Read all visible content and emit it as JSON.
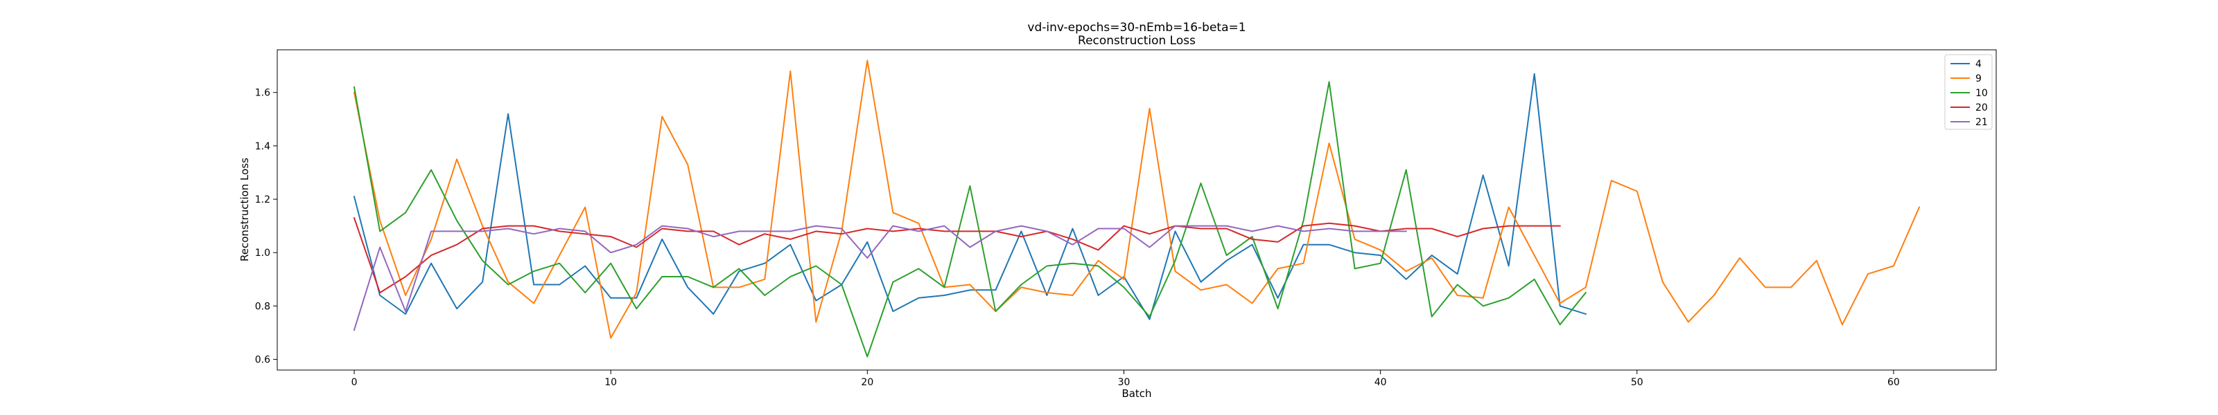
{
  "chart_data": {
    "type": "line",
    "title": "vd-inv-epochs=30-nEmb=16-beta=1",
    "subtitle": "Reconstruction Loss",
    "xlabel": "Batch",
    "ylabel": "Reconstruction Loss",
    "xlim": [
      -3,
      64
    ],
    "ylim": [
      0.56,
      1.76
    ],
    "xticks": [
      0,
      10,
      20,
      30,
      40,
      50,
      60
    ],
    "yticks": [
      0.6,
      0.8,
      1.0,
      1.2,
      1.4,
      1.6
    ],
    "grid": false,
    "legend_position": "top-right",
    "series": [
      {
        "name": "4",
        "color": "#1f77b4",
        "x": [
          0,
          1,
          2,
          3,
          4,
          5,
          6,
          7,
          8,
          9,
          10,
          11,
          12,
          13,
          14,
          15,
          16,
          17,
          18,
          19,
          20,
          21,
          22,
          23,
          24,
          25,
          26,
          27,
          28,
          29,
          30,
          31,
          32,
          33,
          34,
          35,
          36,
          37,
          38,
          39,
          40,
          41,
          42,
          43,
          44,
          45,
          46,
          47,
          48
        ],
        "values": [
          1.21,
          0.84,
          0.77,
          0.96,
          0.79,
          0.89,
          1.52,
          0.88,
          0.88,
          0.95,
          0.83,
          0.83,
          1.05,
          0.87,
          0.77,
          0.93,
          0.96,
          1.03,
          0.82,
          0.88,
          1.04,
          0.78,
          0.83,
          0.84,
          0.86,
          0.86,
          1.08,
          0.84,
          1.09,
          0.84,
          0.91,
          0.75,
          1.08,
          0.89,
          0.97,
          1.03,
          0.83,
          1.03,
          1.03,
          1.0,
          0.99,
          0.9,
          0.99,
          0.92,
          1.29,
          0.95,
          1.67,
          0.8,
          0.77
        ]
      },
      {
        "name": "9",
        "color": "#ff7f0e",
        "x": [
          0,
          1,
          2,
          3,
          4,
          5,
          6,
          7,
          8,
          9,
          10,
          11,
          12,
          13,
          14,
          15,
          16,
          17,
          18,
          19,
          20,
          21,
          22,
          23,
          24,
          25,
          26,
          27,
          28,
          29,
          30,
          31,
          32,
          33,
          34,
          35,
          36,
          37,
          38,
          39,
          40,
          41,
          42,
          43,
          44,
          45,
          46,
          47,
          48,
          49,
          50,
          51,
          52,
          53,
          54,
          55,
          56,
          57,
          58,
          59,
          60,
          61
        ],
        "values": [
          1.6,
          1.12,
          0.84,
          1.05,
          1.35,
          1.1,
          0.89,
          0.81,
          0.99,
          1.17,
          0.68,
          0.85,
          1.51,
          1.33,
          0.87,
          0.87,
          0.9,
          1.68,
          0.74,
          1.08,
          1.72,
          1.15,
          1.11,
          0.87,
          0.88,
          0.78,
          0.87,
          0.85,
          0.84,
          0.97,
          0.9,
          1.54,
          0.93,
          0.86,
          0.88,
          0.81,
          0.94,
          0.96,
          1.41,
          1.05,
          1.01,
          0.93,
          0.98,
          0.84,
          0.83,
          1.17,
          0.99,
          0.81,
          0.87,
          1.27,
          1.23,
          0.89,
          0.74,
          0.84,
          0.98,
          0.87,
          0.87,
          0.97,
          0.73,
          0.92,
          0.95,
          1.17
        ]
      },
      {
        "name": "10",
        "color": "#2ca02c",
        "x": [
          0,
          1,
          2,
          3,
          4,
          5,
          6,
          7,
          8,
          9,
          10,
          11,
          12,
          13,
          14,
          15,
          16,
          17,
          18,
          19,
          20,
          21,
          22,
          23,
          24,
          25,
          26,
          27,
          28,
          29,
          30,
          31,
          32,
          33,
          34,
          35,
          36,
          37,
          38,
          39,
          40,
          41,
          42,
          43,
          44,
          45,
          46,
          47,
          48
        ],
        "values": [
          1.62,
          1.08,
          1.15,
          1.31,
          1.12,
          0.97,
          0.88,
          0.93,
          0.96,
          0.85,
          0.96,
          0.79,
          0.91,
          0.91,
          0.87,
          0.94,
          0.84,
          0.91,
          0.95,
          0.88,
          0.61,
          0.89,
          0.94,
          0.87,
          1.25,
          0.78,
          0.88,
          0.95,
          0.96,
          0.95,
          0.87,
          0.76,
          0.97,
          1.26,
          0.99,
          1.06,
          0.79,
          1.12,
          1.64,
          0.94,
          0.96,
          1.31,
          0.76,
          0.88,
          0.8,
          0.83,
          0.9,
          0.73,
          0.85
        ]
      },
      {
        "name": "20",
        "color": "#d62728",
        "x": [
          0,
          1,
          2,
          3,
          4,
          5,
          6,
          7,
          8,
          9,
          10,
          11,
          12,
          13,
          14,
          15,
          16,
          17,
          18,
          19,
          20,
          21,
          22,
          23,
          24,
          25,
          26,
          27,
          28,
          29,
          30,
          31,
          32,
          33,
          34,
          35,
          36,
          37,
          38,
          39,
          40,
          41,
          42,
          43,
          44,
          45,
          46,
          47
        ],
        "values": [
          1.13,
          0.85,
          0.91,
          0.99,
          1.03,
          1.09,
          1.1,
          1.1,
          1.08,
          1.07,
          1.06,
          1.02,
          1.09,
          1.08,
          1.08,
          1.03,
          1.07,
          1.05,
          1.08,
          1.07,
          1.09,
          1.08,
          1.09,
          1.08,
          1.08,
          1.08,
          1.06,
          1.08,
          1.05,
          1.01,
          1.1,
          1.07,
          1.1,
          1.09,
          1.09,
          1.05,
          1.04,
          1.1,
          1.11,
          1.1,
          1.08,
          1.09,
          1.09,
          1.06,
          1.09,
          1.1,
          1.1,
          1.1
        ]
      },
      {
        "name": "21",
        "color": "#9467bd",
        "x": [
          0,
          1,
          2,
          3,
          4,
          5,
          6,
          7,
          8,
          9,
          10,
          11,
          12,
          13,
          14,
          15,
          16,
          17,
          18,
          19,
          20,
          21,
          22,
          23,
          24,
          25,
          26,
          27,
          28,
          29,
          30,
          31,
          32,
          33,
          34,
          35,
          36,
          37,
          38,
          39,
          40,
          41
        ],
        "values": [
          0.71,
          1.02,
          0.78,
          1.08,
          1.08,
          1.08,
          1.09,
          1.07,
          1.09,
          1.08,
          1.0,
          1.03,
          1.1,
          1.09,
          1.06,
          1.08,
          1.08,
          1.08,
          1.1,
          1.09,
          0.98,
          1.1,
          1.08,
          1.1,
          1.02,
          1.08,
          1.1,
          1.08,
          1.03,
          1.09,
          1.09,
          1.02,
          1.1,
          1.1,
          1.1,
          1.08,
          1.1,
          1.08,
          1.09,
          1.08,
          1.08,
          1.08
        ]
      }
    ]
  }
}
